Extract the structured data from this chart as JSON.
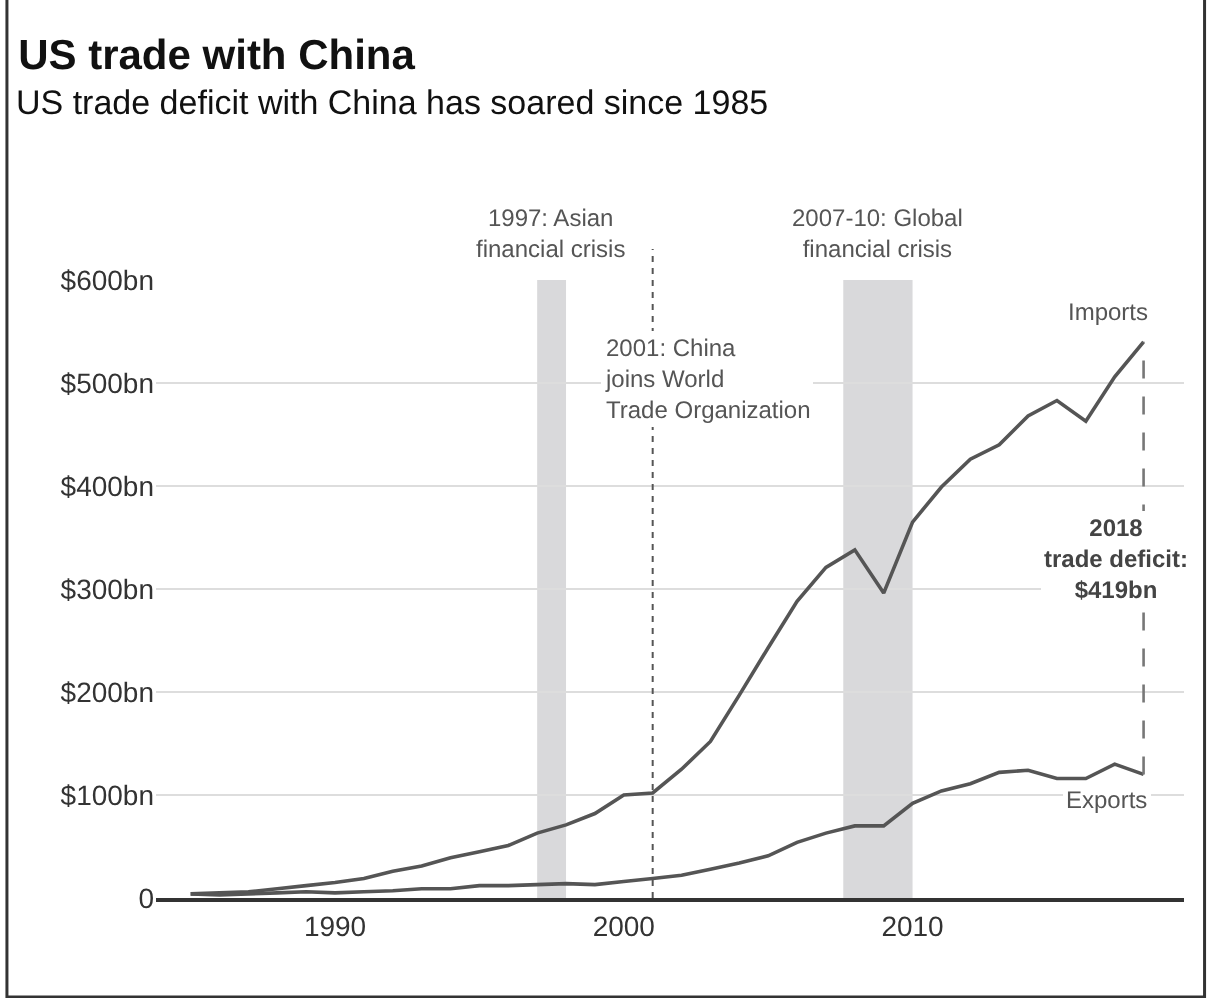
{
  "chart_data": {
    "type": "line",
    "title": "US trade with China",
    "subtitle": "US trade deficit with China has soared since 1985",
    "x": [
      1985,
      1986,
      1987,
      1988,
      1989,
      1990,
      1991,
      1992,
      1993,
      1994,
      1995,
      1996,
      1997,
      1998,
      1999,
      2000,
      2001,
      2002,
      2003,
      2004,
      2005,
      2006,
      2007,
      2008,
      2009,
      2010,
      2011,
      2012,
      2013,
      2014,
      2015,
      2016,
      2017,
      2018
    ],
    "series": [
      {
        "name": "Imports",
        "color": "#555555",
        "values": [
          4,
          5,
          6,
          9,
          12,
          15,
          19,
          26,
          31,
          39,
          45,
          51,
          63,
          71,
          82,
          100,
          102,
          125,
          152,
          197,
          243,
          288,
          321,
          338,
          296,
          365,
          399,
          426,
          440,
          468,
          483,
          463,
          506,
          540
        ]
      },
      {
        "name": "Exports",
        "color": "#555555",
        "values": [
          4,
          3,
          4,
          5,
          6,
          5,
          6,
          7,
          9,
          9,
          12,
          12,
          13,
          14,
          13,
          16,
          19,
          22,
          28,
          34,
          41,
          54,
          63,
          70,
          70,
          92,
          104,
          111,
          122,
          124,
          116,
          116,
          130,
          120
        ]
      },
      {
        "type": "line",
        "color": "#777777",
        "line_style": "dashed",
        "x": [
          2018,
          2018
        ],
        "values": [
          120,
          540
        ]
      }
    ],
    "xlim": [
      1983.8,
      2019.4
    ],
    "xticks": [
      1990,
      2000,
      2010
    ],
    "ylim": [
      0,
      600
    ],
    "yticks": [
      {
        "value": 0,
        "label": "0"
      },
      {
        "value": 100,
        "label": "$100bn"
      },
      {
        "value": 200,
        "label": "$200bn"
      },
      {
        "value": 300,
        "label": "$300bn"
      },
      {
        "value": 400,
        "label": "$400bn"
      },
      {
        "value": 500,
        "label": "$500bn"
      },
      {
        "value": 600,
        "label": "$600bn"
      }
    ],
    "grid": "y",
    "legend": false,
    "line_style": "solid",
    "marker": "none",
    "bands": [
      {
        "axis": "x",
        "from": 1997,
        "to": 1998,
        "label": "1997: Asian\nfinancial crisis",
        "color": "#d9d9db"
      },
      {
        "axis": "x",
        "from": 2007.6,
        "to": 2010,
        "label": "2007-10: Global\nfinancial crisis",
        "color": "#d9d9db"
      }
    ],
    "ref_lines": [
      {
        "axis": "x",
        "value": 2001,
        "label": "2001: China\njoins World\nTrade Organization",
        "color": "#555555",
        "line_style": "dotted"
      }
    ],
    "annotations": [
      {
        "text": "2018\ntrade deficit:\n$419bn",
        "x": 2018,
        "y": 330
      }
    ]
  }
}
